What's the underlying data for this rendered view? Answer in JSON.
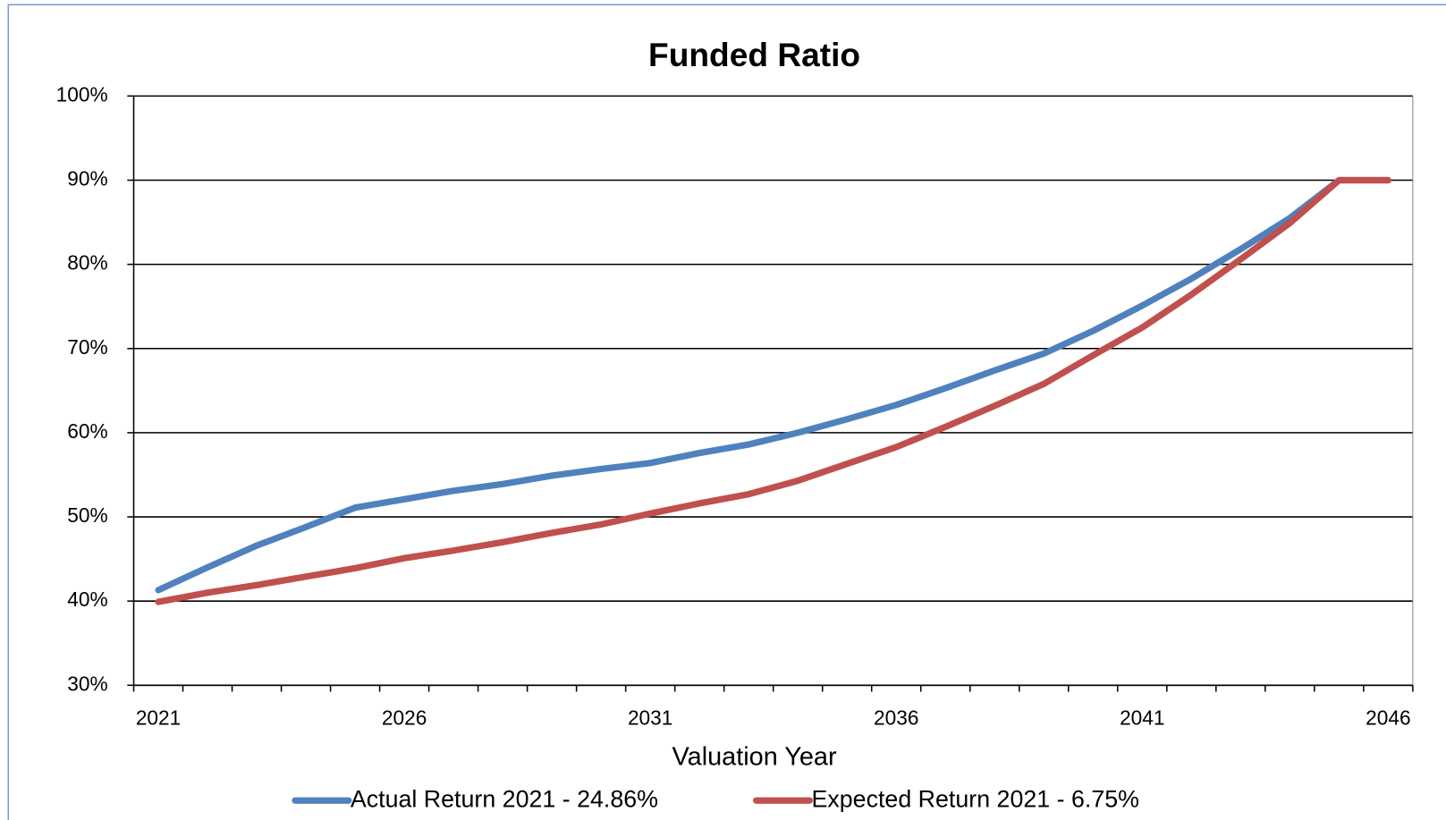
{
  "chart_data": {
    "type": "line",
    "title": "Funded Ratio",
    "x_label": "Valuation Year",
    "categories": [
      "2021",
      null,
      null,
      null,
      null,
      "2026",
      null,
      null,
      null,
      null,
      "2031",
      null,
      null,
      null,
      null,
      "2036",
      null,
      null,
      null,
      null,
      "2041",
      null,
      null,
      null,
      null,
      "2046"
    ],
    "series": [
      {
        "name": "Actual Return 2021 - 24.86%",
        "color": "#4f81bd",
        "values": [
          41.3,
          44.0,
          46.6,
          48.8,
          51.1,
          52.1,
          53.1,
          53.9,
          54.9,
          55.7,
          56.4,
          57.6,
          58.6,
          60.0,
          61.6,
          63.3,
          65.3,
          67.4,
          69.4,
          72.1,
          75.1,
          78.3,
          81.8,
          85.5,
          90,
          90
        ]
      },
      {
        "name": "Expected Return 2021 - 6.75%",
        "color": "#c0504d",
        "values": [
          39.9,
          41.0,
          41.9,
          42.9,
          43.9,
          45.1,
          46.0,
          47.0,
          48.1,
          49.1,
          50.4,
          51.6,
          52.7,
          54.3,
          56.3,
          58.3,
          60.7,
          63.2,
          65.8,
          69.2,
          72.5,
          76.4,
          80.6,
          84.9,
          90,
          90
        ]
      }
    ],
    "ylim": [
      30,
      100
    ],
    "yticks": [
      {
        "value": 30,
        "label": "30%"
      },
      {
        "value": 40,
        "label": "40%"
      },
      {
        "value": 50,
        "label": "50%"
      },
      {
        "value": 60,
        "label": "60%"
      },
      {
        "value": 70,
        "label": "70%"
      },
      {
        "value": 80,
        "label": "80%"
      },
      {
        "value": 90,
        "label": "90%"
      },
      {
        "value": 100,
        "label": "100%"
      }
    ],
    "grid": true,
    "legend": "bottom"
  }
}
